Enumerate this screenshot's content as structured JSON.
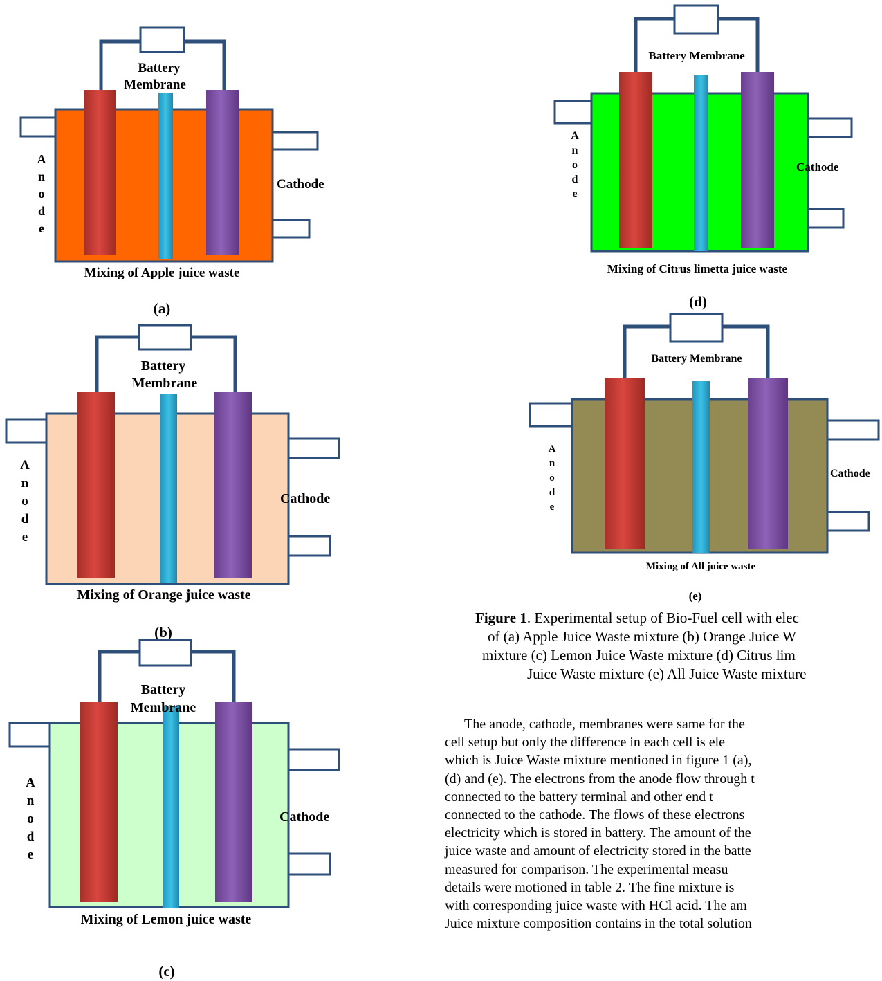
{
  "panels": [
    {
      "id": "a",
      "label": "(a)",
      "liquid_color": "#FF6600",
      "caption": "Mixing of Apple juice waste",
      "membrane_label": "Membrane",
      "battery_label": "Battery",
      "anode_label": "Anode",
      "cathode_label": "Cathode"
    },
    {
      "id": "b",
      "label": "(b)",
      "liquid_color": "#FBD5B5",
      "caption": "Mixing of Orange juice waste",
      "membrane_label": "Membrane",
      "battery_label": "Battery",
      "anode_label": "Anode",
      "cathode_label": "Cathode"
    },
    {
      "id": "c",
      "label": "(c)",
      "liquid_color": "#CCFFCC",
      "caption": "Mixing of Lemon juice waste",
      "membrane_label": "Membrane",
      "battery_label": "Battery",
      "anode_label": "Anode",
      "cathode_label": "Cathode"
    },
    {
      "id": "d",
      "label": "(d)",
      "liquid_color": "#00FF00",
      "caption": "Mixing of Citrus limetta juice waste",
      "battery_membrane_label": "Battery Membrane",
      "anode_label": "Anode",
      "cathode_label": "Cathode"
    },
    {
      "id": "e",
      "label": "(e)",
      "liquid_color": "#948A54",
      "caption": "Mixing of All juice waste",
      "battery_membrane_label": "Battery Membrane",
      "anode_label": "Anode",
      "cathode_label": "Cathode"
    }
  ],
  "colors": {
    "anode_electrode": "#C0392B",
    "cathode_electrode": "#7B4FA0",
    "membrane": "#31B0D5",
    "wire": "#2E4F7A"
  },
  "figure_caption": {
    "bold": "Figure 1",
    "lines": [
      ". Experimental setup of Bio-Fuel cell with elec",
      "of (a) Apple Juice Waste mixture (b) Orange Juice W",
      "mixture (c) Lemon Juice Waste mixture (d) Citrus lim",
      "Juice Waste mixture (e) All Juice Waste mixture"
    ]
  },
  "body_lines": [
    "The anode, cathode, membranes were same for the",
    "cell setup but only the difference in each cell is ele",
    "which is Juice Waste mixture mentioned in figure 1 (a),",
    "(d) and (e). The electrons from the anode flow through t",
    "connected to the battery terminal and other end t",
    "connected to the cathode. The flows of these electrons",
    "electricity which is stored in battery. The amount of the",
    "juice waste and amount of electricity stored in the batte",
    "measured for comparison. The experimental measu",
    "details were motioned in table 2. The fine mixture is",
    "with corresponding juice waste with HCl acid. The am",
    "Juice mixture composition contains in the total solution"
  ]
}
